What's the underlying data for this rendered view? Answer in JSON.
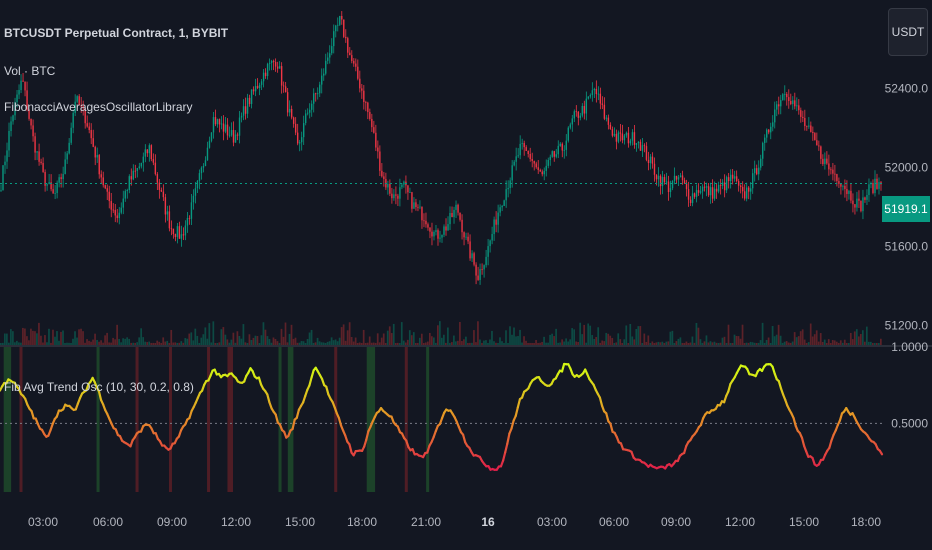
{
  "header": {
    "symbol": "BTCUSDT Perpetual Contract, 1, BYBIT",
    "volume": "Vol · BTC",
    "indicator": "FibonacciAveragesOscillatorLibrary"
  },
  "currency_button": "USDT",
  "last_price": "51919.1",
  "oscillator_label": "Fib Avg Trend Osc (10, 30, 0.2, 0.8)",
  "colors": {
    "background": "#131722",
    "candle_up": "#089981",
    "candle_down": "#f23645",
    "osc_high": "#d4f514",
    "osc_low": "#e0204a",
    "band_high": "#1e4a2a",
    "band_low": "#5a1f26",
    "axis_text": "#b2b5be",
    "price_line": "#089981"
  },
  "chart_data": [
    {
      "type": "line",
      "title": "BTCUSDT Perpetual Contract, 1, BYBIT",
      "y_ticks": [
        52400.0,
        52000.0,
        51600.0,
        51200.0
      ],
      "y_tick_labels": [
        "52400.0",
        "52000.0",
        "51600.0",
        "51200.0"
      ],
      "ylim": [
        51100,
        52850
      ],
      "x_tick_labels": [
        "03:00",
        "06:00",
        "09:00",
        "12:00",
        "15:00",
        "18:00",
        "21:00",
        "16",
        "03:00",
        "06:00",
        "09:00",
        "12:00",
        "15:00",
        "18:00"
      ],
      "last_value": 51919.1,
      "series": [
        {
          "values": [
            51920,
            52250,
            52450,
            52150,
            51950,
            51850,
            52000,
            52350,
            52250,
            52050,
            51850,
            51750,
            51920,
            52000,
            52100,
            51880,
            51700,
            51650,
            51800,
            52000,
            52250,
            52200,
            52150,
            52300,
            52400,
            52500,
            52550,
            52320,
            52100,
            52300,
            52400,
            52600,
            52750,
            52550,
            52400,
            52200,
            51950,
            51850,
            51900,
            51800,
            51750,
            51650,
            51700,
            51800,
            51600,
            51450,
            51600,
            51800,
            51950,
            52100,
            52050,
            51950,
            52050,
            52100,
            52250,
            52300,
            52400,
            52250,
            52150,
            52150,
            52150,
            52050,
            51950,
            51900,
            51950,
            51850,
            51900,
            51870,
            51900,
            51950,
            51850,
            51950,
            52120,
            52300,
            52400,
            52300,
            52200,
            52100,
            52000,
            51950,
            51870,
            51800,
            51900,
            51920
          ]
        }
      ]
    },
    {
      "type": "line",
      "title": "Fib Avg Trend Osc (10, 30, 0.2, 0.8)",
      "y_ticks": [
        1.0,
        0.5
      ],
      "y_tick_labels": [
        "1.0000",
        "0.5000"
      ],
      "ylim": [
        0.05,
        1.0
      ],
      "upper_threshold": 0.8,
      "lower_threshold": 0.2,
      "series": [
        {
          "values": [
            0.72,
            0.8,
            0.72,
            0.62,
            0.5,
            0.4,
            0.55,
            0.62,
            0.58,
            0.7,
            0.8,
            0.65,
            0.5,
            0.4,
            0.35,
            0.45,
            0.5,
            0.4,
            0.32,
            0.38,
            0.5,
            0.62,
            0.75,
            0.85,
            0.8,
            0.82,
            0.75,
            0.85,
            0.78,
            0.65,
            0.5,
            0.4,
            0.55,
            0.7,
            0.88,
            0.75,
            0.6,
            0.45,
            0.3,
            0.32,
            0.5,
            0.6,
            0.55,
            0.45,
            0.35,
            0.28,
            0.3,
            0.45,
            0.6,
            0.55,
            0.4,
            0.3,
            0.25,
            0.2,
            0.22,
            0.45,
            0.65,
            0.75,
            0.8,
            0.75,
            0.8,
            0.9,
            0.8,
            0.85,
            0.75,
            0.6,
            0.45,
            0.35,
            0.3,
            0.25,
            0.22,
            0.2,
            0.22,
            0.25,
            0.35,
            0.45,
            0.55,
            0.6,
            0.65,
            0.8,
            0.88,
            0.8,
            0.85,
            0.9,
            0.75,
            0.6,
            0.45,
            0.3,
            0.22,
            0.3,
            0.45,
            0.6,
            0.55,
            0.45,
            0.38,
            0.3
          ]
        }
      ],
      "bands": [
        {
          "x": [
            0.4,
            1.2
          ],
          "kind": "high"
        },
        {
          "x": [
            2.1,
            2.2
          ],
          "kind": "low"
        },
        {
          "x": [
            10.4,
            10.5
          ],
          "kind": "high"
        },
        {
          "x": [
            14.6,
            14.7
          ],
          "kind": "low"
        },
        {
          "x": [
            18.2,
            18.3
          ],
          "kind": "low"
        },
        {
          "x": [
            22.3,
            22.4
          ],
          "kind": "low"
        },
        {
          "x": [
            24.5,
            25.1
          ],
          "kind": "low"
        },
        {
          "x": [
            30.0,
            30.3
          ],
          "kind": "high"
        },
        {
          "x": [
            31.0,
            31.6
          ],
          "kind": "high"
        },
        {
          "x": [
            36.0,
            36.2
          ],
          "kind": "low"
        },
        {
          "x": [
            39.5,
            40.4
          ],
          "kind": "high"
        },
        {
          "x": [
            43.6,
            43.8
          ],
          "kind": "low"
        },
        {
          "x": [
            45.9,
            46.0
          ],
          "kind": "high"
        }
      ]
    }
  ]
}
